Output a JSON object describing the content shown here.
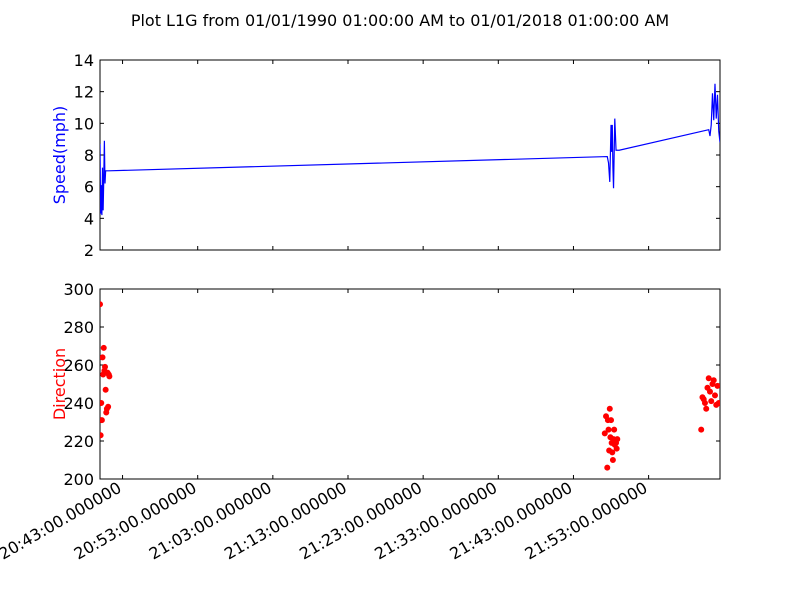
{
  "chart_data": {
    "title": "Plot L1G from 01/01/1990 01:00:00 AM to 01/01/2018 01:00:00 AM",
    "x_axis": {
      "xlim": [
        "20:40:00",
        "22:02:30"
      ],
      "tick_values": [
        "20:43:00",
        "20:53:00",
        "21:03:00",
        "21:13:00",
        "21:23:00",
        "21:33:00",
        "21:43:00",
        "21:53:00"
      ],
      "tick_labels": [
        "20:43:00.000000",
        "20:53:00.000000",
        "21:03:00.000000",
        "21:13:00.000000",
        "21:23:00.000000",
        "21:33:00.000000",
        "21:43:00.000000",
        "21:53:00.000000"
      ],
      "label_rotation_deg": 30
    },
    "panels": [
      {
        "type": "line",
        "ylabel": "Speed(mph)",
        "ylim": [
          2,
          14
        ],
        "yticks": [
          2,
          4,
          6,
          8,
          10,
          12,
          14
        ],
        "color": "#0000ff",
        "series": [
          {
            "x": [
              "20:40:00",
              "20:40:05",
              "20:40:10",
              "20:40:15",
              "20:40:20",
              "20:40:25",
              "20:40:30",
              "20:40:35",
              "20:40:40",
              "20:40:45",
              "20:40:50",
              "20:40:55",
              "20:41:00",
              "20:41:05",
              "20:41:10",
              "21:47:30",
              "21:47:40",
              "21:47:50",
              "21:48:00",
              "21:48:05",
              "21:48:10",
              "21:48:15",
              "21:48:20",
              "21:48:30",
              "21:48:40",
              "21:48:45",
              "21:48:50",
              "21:48:55",
              "21:49:00",
              "21:49:05",
              "22:01:00",
              "22:01:10",
              "22:01:20",
              "22:01:30",
              "22:01:40",
              "22:01:50",
              "22:02:00",
              "22:02:10",
              "22:02:20",
              "22:02:30"
            ],
            "y": [
              8.7,
              4.3,
              6.1,
              4.2,
              7.2,
              4.5,
              6.5,
              8.9,
              6.2,
              7.0,
              7.0,
              7.0,
              7.0,
              7.0,
              7.0,
              7.9,
              7.5,
              6.3,
              9.9,
              8.2,
              9.9,
              7.2,
              5.9,
              10.3,
              8.3,
              8.3,
              8.3,
              8.3,
              8.3,
              8.3,
              9.6,
              9.2,
              9.9,
              11.9,
              10.2,
              12.5,
              10.3,
              11.8,
              9.5,
              8.8
            ]
          }
        ]
      },
      {
        "type": "scatter",
        "ylabel": "Direction",
        "ylim": [
          200,
          300
        ],
        "yticks": [
          200,
          220,
          240,
          260,
          280,
          300
        ],
        "color": "#ff0000",
        "series": [
          {
            "x": [
              "20:40:00",
              "20:40:05",
              "20:40:10",
              "20:40:15",
              "20:40:20",
              "20:40:25",
              "20:40:30",
              "20:40:35",
              "20:40:40",
              "20:40:45",
              "20:40:50",
              "20:40:55",
              "20:41:00",
              "20:41:05",
              "20:41:10",
              "20:41:15",
              "21:47:10",
              "21:47:20",
              "21:47:30",
              "21:47:35",
              "21:47:40",
              "21:47:45",
              "21:47:50",
              "21:47:55",
              "21:48:00",
              "21:48:05",
              "21:48:10",
              "21:48:15",
              "21:48:20",
              "21:48:25",
              "21:48:30",
              "21:48:35",
              "21:48:40",
              "21:48:45",
              "21:48:50",
              "22:00:00",
              "22:00:10",
              "22:00:20",
              "22:00:30",
              "22:00:40",
              "22:00:50",
              "22:01:00",
              "22:01:10",
              "22:01:20",
              "22:01:30",
              "22:01:40",
              "22:01:50",
              "22:02:00",
              "22:02:10",
              "22:02:20"
            ],
            "y": [
              292,
              223,
              240,
              231,
              264,
              255,
              269,
              257,
              259,
              247,
              235,
              237,
              256,
              238,
              255,
              254,
              224,
              233,
              206,
              231,
              226,
              215,
              237,
              222,
              231,
              219,
              214,
              210,
              221,
              226,
              218,
              220,
              219,
              216,
              221,
              226,
              243,
              242,
              240,
              237,
              248,
              253,
              246,
              241,
              250,
              252,
              244,
              239,
              249,
              240
            ]
          }
        ]
      }
    ]
  }
}
